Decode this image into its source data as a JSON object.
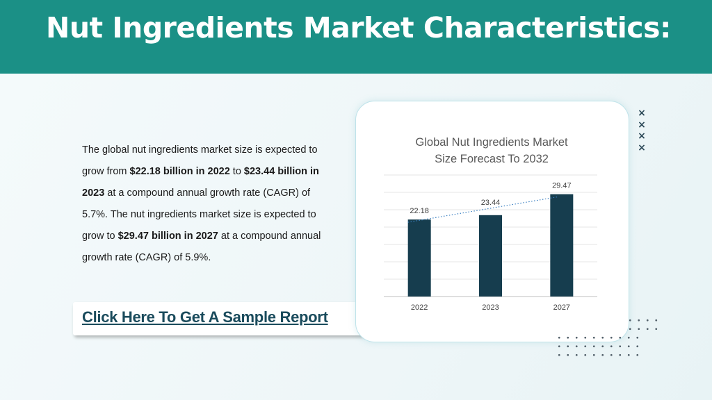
{
  "header": {
    "title": "Nut Ingredients Market Characteristics:"
  },
  "description": {
    "p1": "The global nut ingredients market size is expected to grow from ",
    "b1": "$22.18 billion in 2022",
    "p2": " to ",
    "b2": "$23.44 billion in 2023",
    "p3": " at a compound annual growth rate (CAGR) of 5.7%. The nut ingredients market size is expected to grow to ",
    "b3": "$29.47 billion in 2027",
    "p4": " at a compound annual growth rate (CAGR) of 5.9%."
  },
  "cta": {
    "label": "Click Here To Get A Sample Report"
  },
  "decor": {
    "x_mark": "×",
    "x_icon": "close-icon"
  },
  "colors": {
    "header_bg": "#1b9086",
    "bar": "#163d4e",
    "trendline": "#3a7fc1",
    "cta_text": "#1a4b5c"
  },
  "chart_data": {
    "type": "bar",
    "title_line1": "Global Nut Ingredients Market",
    "title_line2": "Size Forecast To 2032",
    "categories": [
      "2022",
      "2023",
      "2027"
    ],
    "values": [
      22.18,
      23.44,
      29.47
    ],
    "value_labels": [
      "22.18",
      "23.44",
      "29.47"
    ],
    "trendline": "linear, dotted",
    "grid": true,
    "legend": "none"
  }
}
